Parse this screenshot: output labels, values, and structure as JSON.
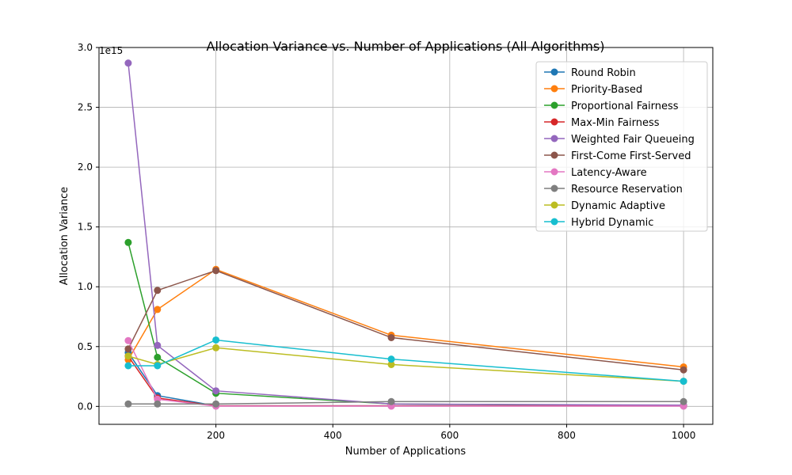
{
  "chart_data": {
    "type": "line",
    "title": "Allocation Variance vs. Number of Applications (All Algorithms)",
    "xlabel": "Number of Applications",
    "ylabel": "Allocation Variance",
    "y_offset_label": "1e15",
    "xlim": [
      0,
      1050
    ],
    "ylim": [
      -0.15,
      3.0
    ],
    "y_scale_note": "values in units of 1e15",
    "x_ticks": [
      200,
      400,
      600,
      800,
      1000
    ],
    "x_tick_labels": [
      "200",
      "400",
      "600",
      "800",
      "1000"
    ],
    "y_ticks": [
      0.0,
      0.5,
      1.0,
      1.5,
      2.0,
      2.5,
      3.0
    ],
    "y_tick_labels": [
      "0.0",
      "0.5",
      "1.0",
      "1.5",
      "2.0",
      "2.5",
      "3.0"
    ],
    "grid": true,
    "legend_position": "top-right",
    "x": [
      50,
      100,
      200,
      500,
      1000
    ],
    "series": [
      {
        "name": "Round Robin",
        "color": "#1f77b4",
        "values": [
          0.45,
          0.09,
          0.005,
          0.005,
          0.005
        ]
      },
      {
        "name": "Priority-Based",
        "color": "#ff7f0e",
        "values": [
          0.39,
          0.81,
          1.145,
          0.595,
          0.33
        ]
      },
      {
        "name": "Proportional Fairness",
        "color": "#2ca02c",
        "values": [
          1.37,
          0.41,
          0.11,
          0.02,
          0.005
        ]
      },
      {
        "name": "Max-Min Fairness",
        "color": "#d62728",
        "values": [
          0.42,
          0.07,
          0.005,
          0.005,
          0.005
        ]
      },
      {
        "name": "Weighted Fair Queueing",
        "color": "#9467bd",
        "values": [
          2.87,
          0.51,
          0.13,
          0.02,
          0.01
        ]
      },
      {
        "name": "First-Come First-Served",
        "color": "#8c564b",
        "values": [
          0.48,
          0.97,
          1.135,
          0.575,
          0.305
        ]
      },
      {
        "name": "Latency-Aware",
        "color": "#e377c2",
        "values": [
          0.55,
          0.06,
          0.002,
          0.002,
          0.002
        ]
      },
      {
        "name": "Resource Reservation",
        "color": "#7f7f7f",
        "values": [
          0.02,
          0.02,
          0.02,
          0.04,
          0.04
        ]
      },
      {
        "name": "Dynamic Adaptive",
        "color": "#bcbd22",
        "values": [
          0.42,
          0.35,
          0.49,
          0.35,
          0.21
        ]
      },
      {
        "name": "Hybrid Dynamic",
        "color": "#17becf",
        "values": [
          0.34,
          0.34,
          0.555,
          0.395,
          0.21
        ]
      }
    ]
  }
}
